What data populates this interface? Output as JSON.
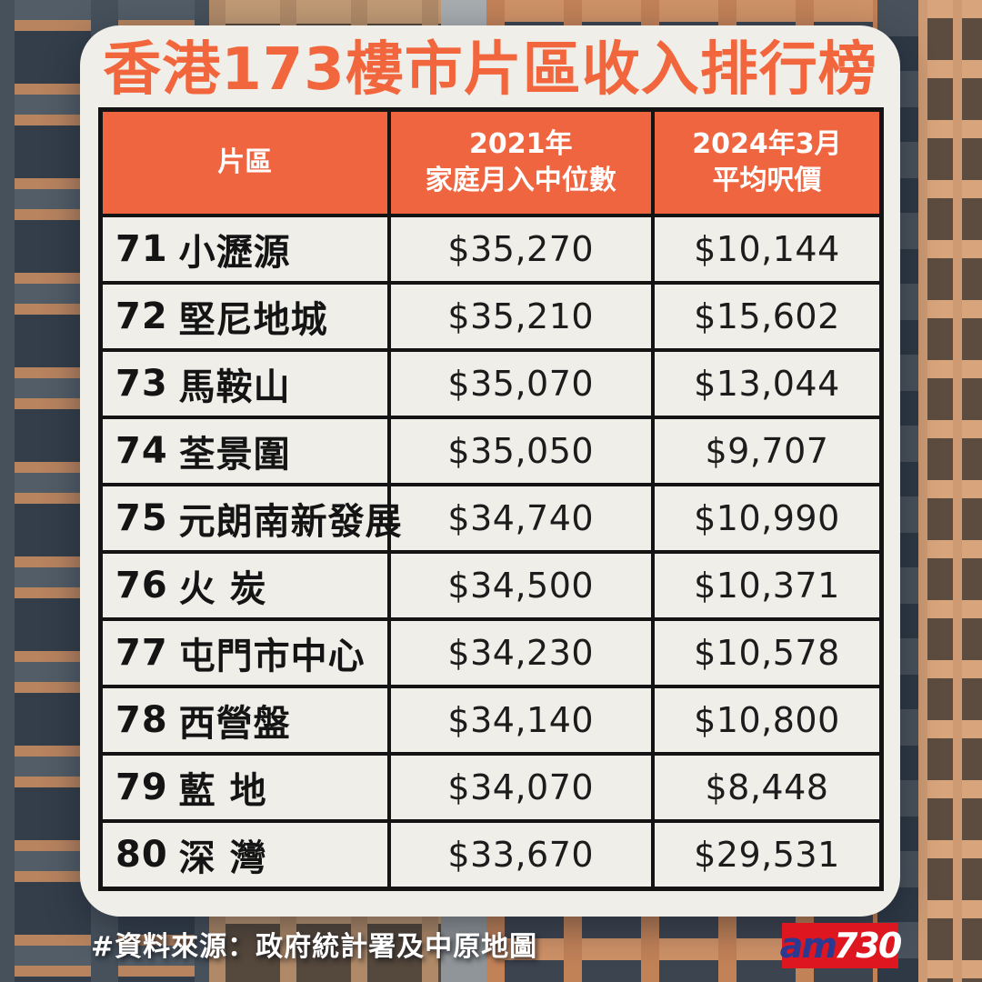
{
  "page": {
    "title": "香港173樓市片區收入排行榜"
  },
  "table": {
    "columns": [
      {
        "line1": "片區",
        "line2": ""
      },
      {
        "line1": "2021年",
        "line2": "家庭月入中位數"
      },
      {
        "line1": "2024年3月",
        "line2": "平均呎價"
      }
    ],
    "rows": [
      {
        "rank": "71",
        "district": "小瀝源",
        "income": "$35,270",
        "price": "$10,144"
      },
      {
        "rank": "72",
        "district": "堅尼地城",
        "income": "$35,210",
        "price": "$15,602"
      },
      {
        "rank": "73",
        "district": "馬鞍山",
        "income": "$35,070",
        "price": "$13,044"
      },
      {
        "rank": "74",
        "district": "荃景圍",
        "income": "$35,050",
        "price": "$9,707"
      },
      {
        "rank": "75",
        "district": "元朗南新發展",
        "income": "$34,740",
        "price": "$10,990"
      },
      {
        "rank": "76",
        "district": "火 炭",
        "income": "$34,500",
        "price": "$10,371"
      },
      {
        "rank": "77",
        "district": "屯門市中心",
        "income": "$34,230",
        "price": "$10,578"
      },
      {
        "rank": "78",
        "district": "西營盤",
        "income": "$34,140",
        "price": "$10,800"
      },
      {
        "rank": "79",
        "district": "藍 地",
        "income": "$34,070",
        "price": "$8,448"
      },
      {
        "rank": "80",
        "district": "深 灣",
        "income": "$33,670",
        "price": "$29,531"
      }
    ]
  },
  "footer": {
    "source": "#資料來源：政府統計署及中原地圖"
  },
  "logo": {
    "prefix": "am",
    "suffix": "730"
  },
  "colors": {
    "accent_orange": "#EF6540",
    "card_bg": "#F0EEE9",
    "table_border": "#141414",
    "logo_red": "#DD1620",
    "logo_blue": "#2B3990"
  },
  "chart_data": {
    "type": "table",
    "title": "香港173樓市片區收入排行榜",
    "columns": [
      "片區",
      "2021年家庭月入中位數",
      "2024年3月平均呎價"
    ],
    "categories": [
      "71 小瀝源",
      "72 堅尼地城",
      "73 馬鞍山",
      "74 荃景圍",
      "75 元朗南新發展",
      "76 火炭",
      "77 屯門市中心",
      "78 西營盤",
      "79 藍地",
      "80 深灣"
    ],
    "series": [
      {
        "name": "2021年家庭月入中位數",
        "values": [
          35270,
          35210,
          35070,
          35050,
          34740,
          34500,
          34230,
          34140,
          34070,
          33670
        ]
      },
      {
        "name": "2024年3月平均呎價",
        "values": [
          10144,
          15602,
          13044,
          9707,
          10990,
          10371,
          10578,
          10800,
          8448,
          29531
        ]
      }
    ],
    "source_note": "#資料來源：政府統計署及中原地圖",
    "legend_position": "none",
    "grid": true
  }
}
